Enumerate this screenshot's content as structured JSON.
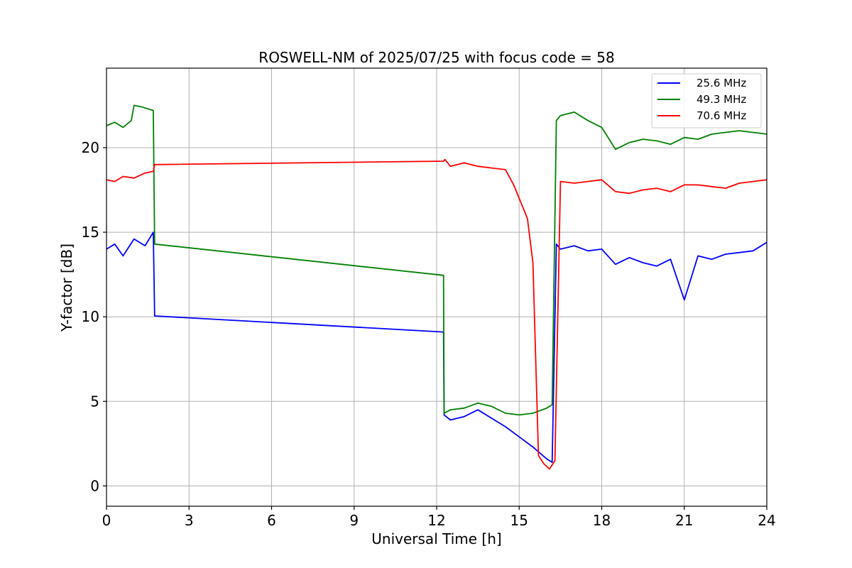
{
  "chart_data": {
    "type": "line",
    "title": "ROSWELL-NM of 2025/07/25 with focus code = 58",
    "xlabel": "Universal Time [h]",
    "ylabel": "Y-factor [dB]",
    "xlim": [
      0,
      24
    ],
    "ylim": [
      -1.2,
      24.7
    ],
    "xticks": [
      0,
      3,
      6,
      9,
      12,
      15,
      18,
      21,
      24
    ],
    "xtick_labels": [
      "0",
      "3",
      "6",
      "9",
      "12",
      "15",
      "18",
      "21",
      "24"
    ],
    "yticks": [
      0,
      5,
      10,
      15,
      20
    ],
    "ytick_labels": [
      "0",
      "5",
      "10",
      "15",
      "20"
    ],
    "grid": true,
    "legend_position": "top-right",
    "series": [
      {
        "name": "25.6 MHz",
        "color": "#0000ff",
        "x": [
          0.0,
          0.3,
          0.6,
          1.0,
          1.4,
          1.7,
          1.75,
          12.25,
          12.27,
          12.5,
          13.0,
          13.5,
          14.0,
          14.5,
          15.0,
          15.5,
          16.0,
          16.2,
          16.35,
          16.5,
          17.0,
          17.5,
          18.0,
          18.5,
          19.0,
          19.5,
          20.0,
          20.5,
          21.0,
          21.5,
          22.0,
          22.5,
          23.0,
          23.5,
          24.0
        ],
        "y": [
          14.0,
          14.3,
          13.6,
          14.6,
          14.2,
          15.0,
          10.05,
          9.1,
          4.2,
          3.9,
          4.1,
          4.5,
          4.0,
          3.5,
          2.9,
          2.3,
          1.6,
          1.4,
          14.3,
          14.0,
          14.2,
          13.9,
          14.0,
          13.1,
          13.5,
          13.2,
          13.0,
          13.4,
          11.0,
          13.6,
          13.4,
          13.7,
          13.8,
          13.9,
          14.4
        ]
      },
      {
        "name": "49.3 MHz",
        "color": "#008000",
        "x": [
          0.0,
          0.3,
          0.6,
          0.9,
          1.0,
          1.3,
          1.7,
          1.75,
          12.25,
          12.27,
          12.5,
          13.0,
          13.5,
          14.0,
          14.5,
          15.0,
          15.5,
          16.0,
          16.2,
          16.35,
          16.5,
          17.0,
          17.5,
          18.0,
          18.5,
          19.0,
          19.5,
          20.0,
          20.5,
          21.0,
          21.5,
          22.0,
          22.5,
          23.0,
          23.5,
          24.0
        ],
        "y": [
          21.3,
          21.5,
          21.2,
          21.6,
          22.5,
          22.4,
          22.2,
          14.3,
          12.45,
          4.3,
          4.5,
          4.6,
          4.9,
          4.7,
          4.3,
          4.2,
          4.3,
          4.6,
          4.8,
          21.6,
          21.9,
          22.1,
          21.6,
          21.2,
          19.9,
          20.3,
          20.5,
          20.4,
          20.2,
          20.6,
          20.5,
          20.8,
          20.9,
          21.0,
          20.9,
          20.8
        ]
      },
      {
        "name": "70.6 MHz",
        "color": "#ff0000",
        "x": [
          0.0,
          0.3,
          0.6,
          1.0,
          1.4,
          1.7,
          1.75,
          12.25,
          12.3,
          12.5,
          13.0,
          13.5,
          14.0,
          14.5,
          14.8,
          15.0,
          15.3,
          15.5,
          15.7,
          15.9,
          16.1,
          16.3,
          16.5,
          17.0,
          17.5,
          18.0,
          18.5,
          19.0,
          19.5,
          20.0,
          20.5,
          21.0,
          21.5,
          22.0,
          22.5,
          23.0,
          23.5,
          24.0
        ],
        "y": [
          18.1,
          18.0,
          18.3,
          18.2,
          18.5,
          18.6,
          19.0,
          19.2,
          19.3,
          18.9,
          19.1,
          18.9,
          18.8,
          18.7,
          17.8,
          17.0,
          15.8,
          13.2,
          1.8,
          1.3,
          1.0,
          1.5,
          18.0,
          17.9,
          18.0,
          18.1,
          17.4,
          17.3,
          17.5,
          17.6,
          17.4,
          17.8,
          17.8,
          17.7,
          17.6,
          17.9,
          18.0,
          18.1
        ]
      }
    ]
  }
}
